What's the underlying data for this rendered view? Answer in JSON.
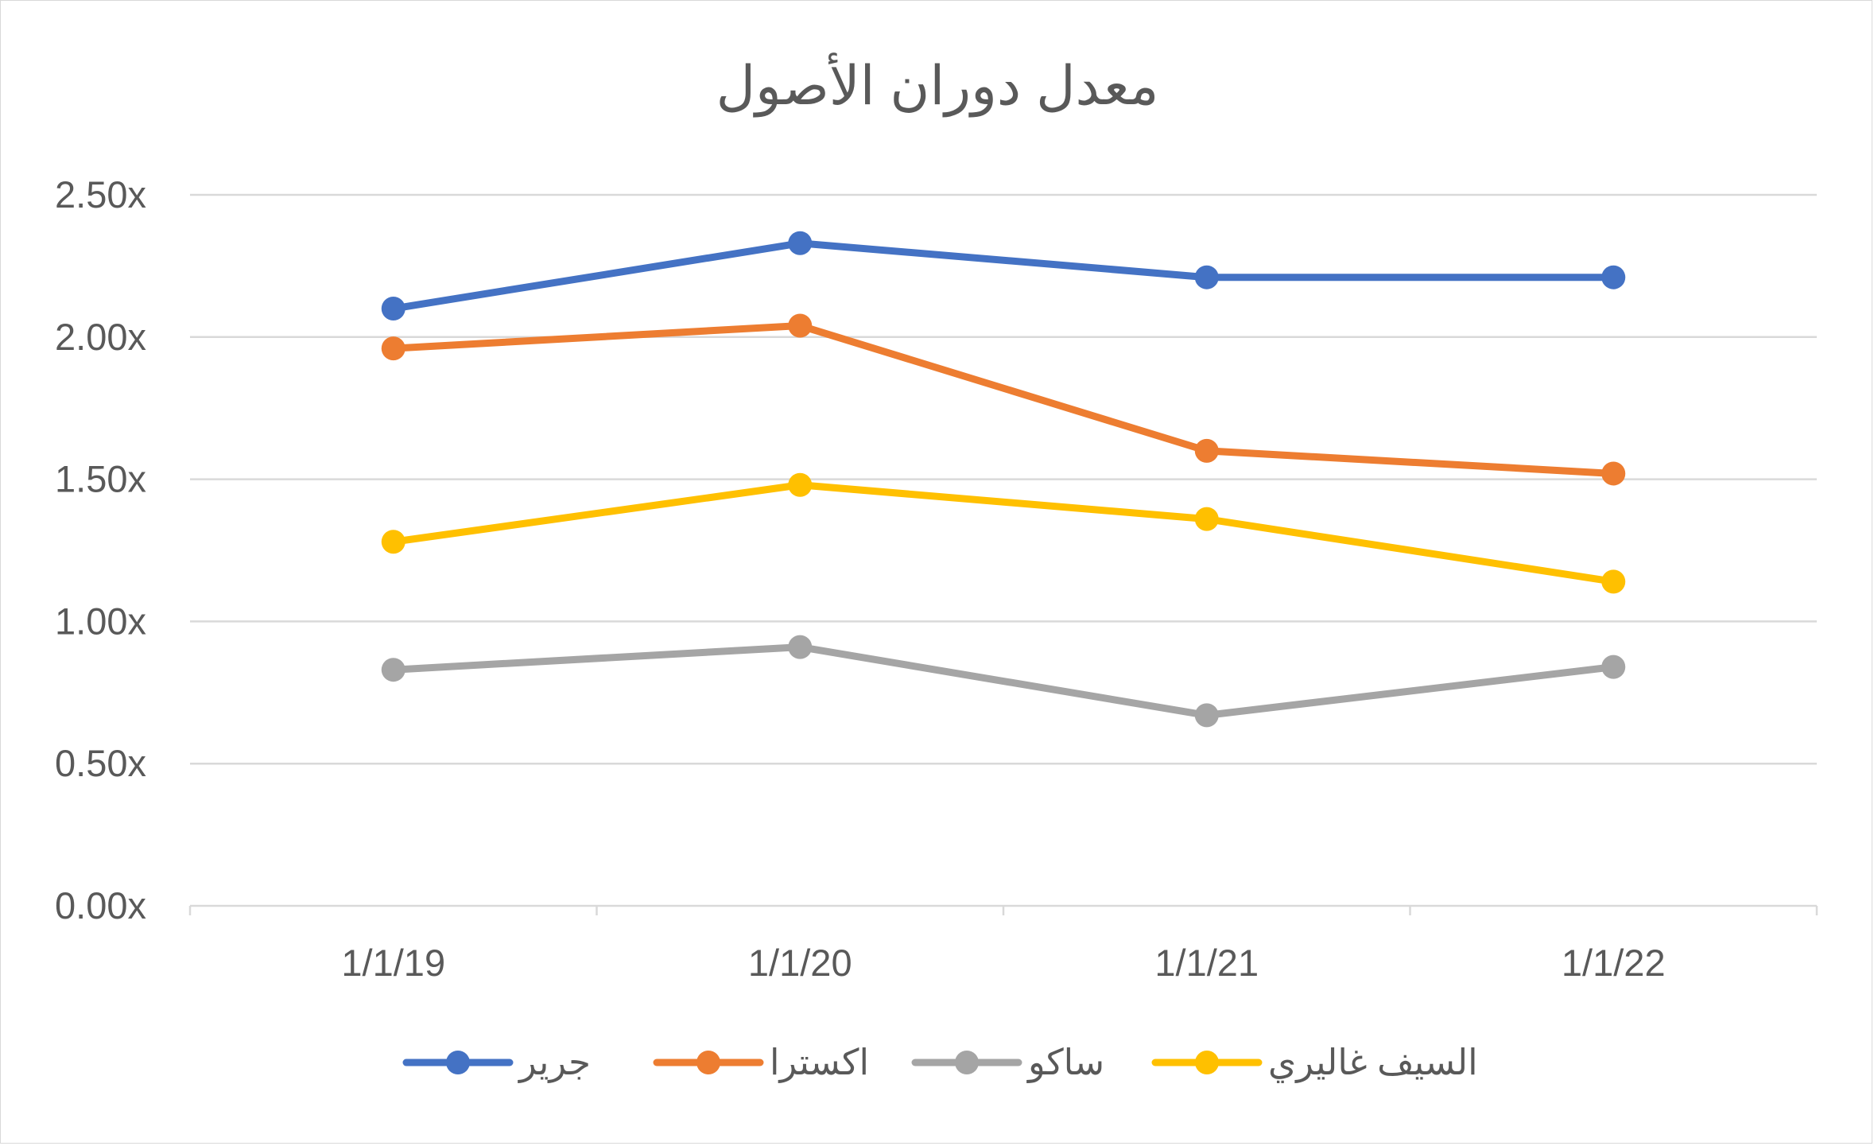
{
  "chart_data": {
    "type": "line",
    "title": "معدل دوران الأصول",
    "xlabel": "",
    "ylabel": "",
    "categories": [
      "1/1/19",
      "1/1/20",
      "1/1/21",
      "1/1/22"
    ],
    "ylim": [
      0,
      2.5
    ],
    "yticks": [
      "0.00x",
      "0.50x",
      "1.00x",
      "1.50x",
      "2.00x",
      "2.50x"
    ],
    "grid": true,
    "legend_position": "bottom",
    "series": [
      {
        "name": "جرير",
        "color": "#4472C4",
        "values": [
          2.1,
          2.33,
          2.21,
          2.21
        ]
      },
      {
        "name": "اكسترا",
        "color": "#ED7D31",
        "values": [
          1.96,
          2.04,
          1.6,
          1.52
        ]
      },
      {
        "name": "ساكو",
        "color": "#A5A5A5",
        "values": [
          0.83,
          0.91,
          0.67,
          0.84
        ]
      },
      {
        "name": "السيف غاليري",
        "color": "#FFC000",
        "values": [
          1.28,
          1.48,
          1.36,
          1.14
        ]
      }
    ]
  }
}
